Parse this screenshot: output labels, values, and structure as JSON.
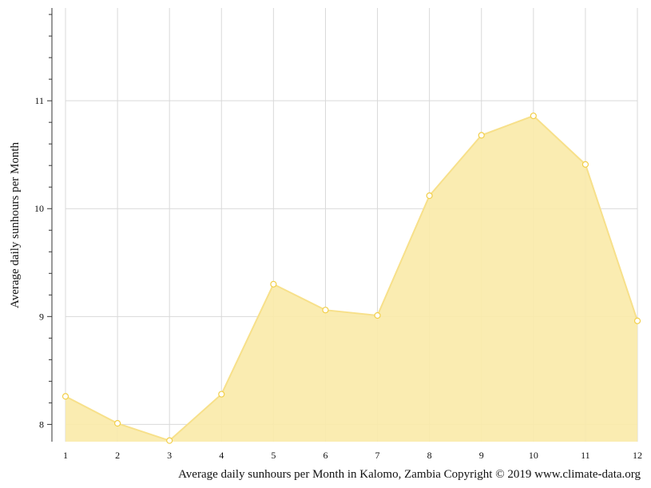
{
  "chart_data": {
    "type": "area",
    "x": [
      1,
      2,
      3,
      4,
      5,
      6,
      7,
      8,
      9,
      10,
      11,
      12
    ],
    "x_tick_labels": [
      "1",
      "2",
      "3",
      "4",
      "5",
      "6",
      "7",
      "8",
      "9",
      "10",
      "11",
      "12"
    ],
    "series": [
      {
        "values": [
          8.26,
          8.01,
          7.85,
          8.28,
          9.3,
          9.06,
          9.01,
          10.12,
          10.68,
          10.86,
          10.41,
          8.96
        ]
      }
    ],
    "ylabel": "Average daily sunhours per Month",
    "xlabel": "",
    "caption": "Average daily sunhours per Month in Kalomo, Zambia Copyright © 2019 www.climate-data.org",
    "y_ticks": [
      8,
      9,
      10,
      11
    ],
    "y_tick_labels": [
      "8",
      "9",
      "10",
      "11"
    ],
    "ylim": [
      7.84,
      11.86
    ],
    "xlim": [
      1,
      12
    ],
    "grid": true,
    "colors": {
      "fill": "#f9eaa9",
      "line": "#f7e08a",
      "marker_stroke": "#f2cf4a",
      "marker_fill": "#ffffff",
      "grid": "#d9d9d9",
      "axis": "#333333"
    }
  }
}
